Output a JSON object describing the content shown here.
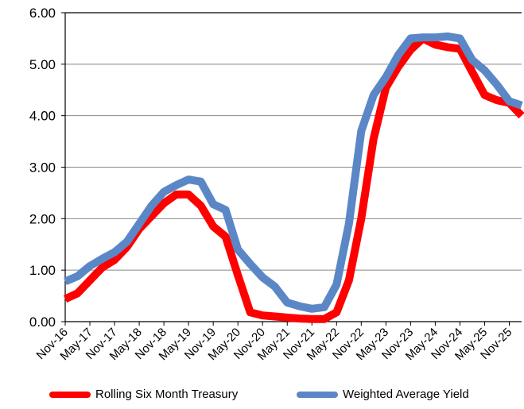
{
  "chart_data": {
    "type": "line",
    "title": "",
    "xlabel": "",
    "ylabel": "",
    "ylim": [
      0,
      6
    ],
    "yticks": [
      "0.00",
      "1.00",
      "2.00",
      "3.00",
      "4.00",
      "5.00",
      "6.00"
    ],
    "grid": "horizontal",
    "legend": "bottom",
    "categories": [
      "Nov-16",
      "May-17",
      "Nov-17",
      "May-18",
      "Nov-18",
      "May-19",
      "Nov-19",
      "May-20",
      "Nov-20",
      "May-21",
      "Nov-21",
      "May-22",
      "Nov-22",
      "May-23",
      "Nov-23",
      "May-24",
      "Nov-24",
      "May-25",
      "Nov-25"
    ],
    "series": [
      {
        "name": "Rolling Six Month Treasury",
        "color": "#ff0000",
        "x": [
          0,
          0.5,
          1,
          1.5,
          2,
          2.5,
          3,
          3.5,
          4,
          4.5,
          5,
          5.5,
          6,
          6.5,
          7,
          7.5,
          8,
          8.5,
          9,
          9.5,
          10,
          10.5,
          11,
          11.5,
          12,
          12.5,
          13,
          13.5,
          14,
          14.5,
          15,
          15.5,
          16,
          16.5,
          17,
          17.5,
          18,
          18.5
        ],
        "values": [
          0.44,
          0.55,
          0.8,
          1.05,
          1.2,
          1.45,
          1.8,
          2.05,
          2.3,
          2.47,
          2.47,
          2.25,
          1.85,
          1.65,
          0.9,
          0.18,
          0.12,
          0.1,
          0.08,
          0.06,
          0.05,
          0.05,
          0.18,
          0.8,
          2.0,
          3.55,
          4.55,
          4.95,
          5.28,
          5.5,
          5.38,
          5.33,
          5.3,
          4.85,
          4.4,
          4.3,
          4.25,
          4.0
        ]
      },
      {
        "name": "Weighted Average Yield",
        "color": "#5b87c6",
        "x": [
          0,
          0.5,
          1,
          1.5,
          2,
          2.5,
          3,
          3.5,
          4,
          4.5,
          5,
          5.5,
          6,
          6.5,
          7,
          7.5,
          8,
          8.5,
          9,
          9.5,
          10,
          10.5,
          11,
          11.5,
          12,
          12.5,
          13,
          13.5,
          14,
          14.5,
          15,
          15.5,
          16,
          16.5,
          17,
          17.5,
          18,
          18.5
        ],
        "values": [
          0.78,
          0.88,
          1.08,
          1.22,
          1.35,
          1.55,
          1.9,
          2.25,
          2.52,
          2.65,
          2.76,
          2.72,
          2.28,
          2.17,
          1.4,
          1.12,
          0.86,
          0.68,
          0.37,
          0.3,
          0.25,
          0.28,
          0.72,
          1.9,
          3.7,
          4.4,
          4.75,
          5.18,
          5.5,
          5.52,
          5.52,
          5.54,
          5.5,
          5.08,
          4.88,
          4.6,
          4.28,
          4.2
        ]
      }
    ]
  }
}
